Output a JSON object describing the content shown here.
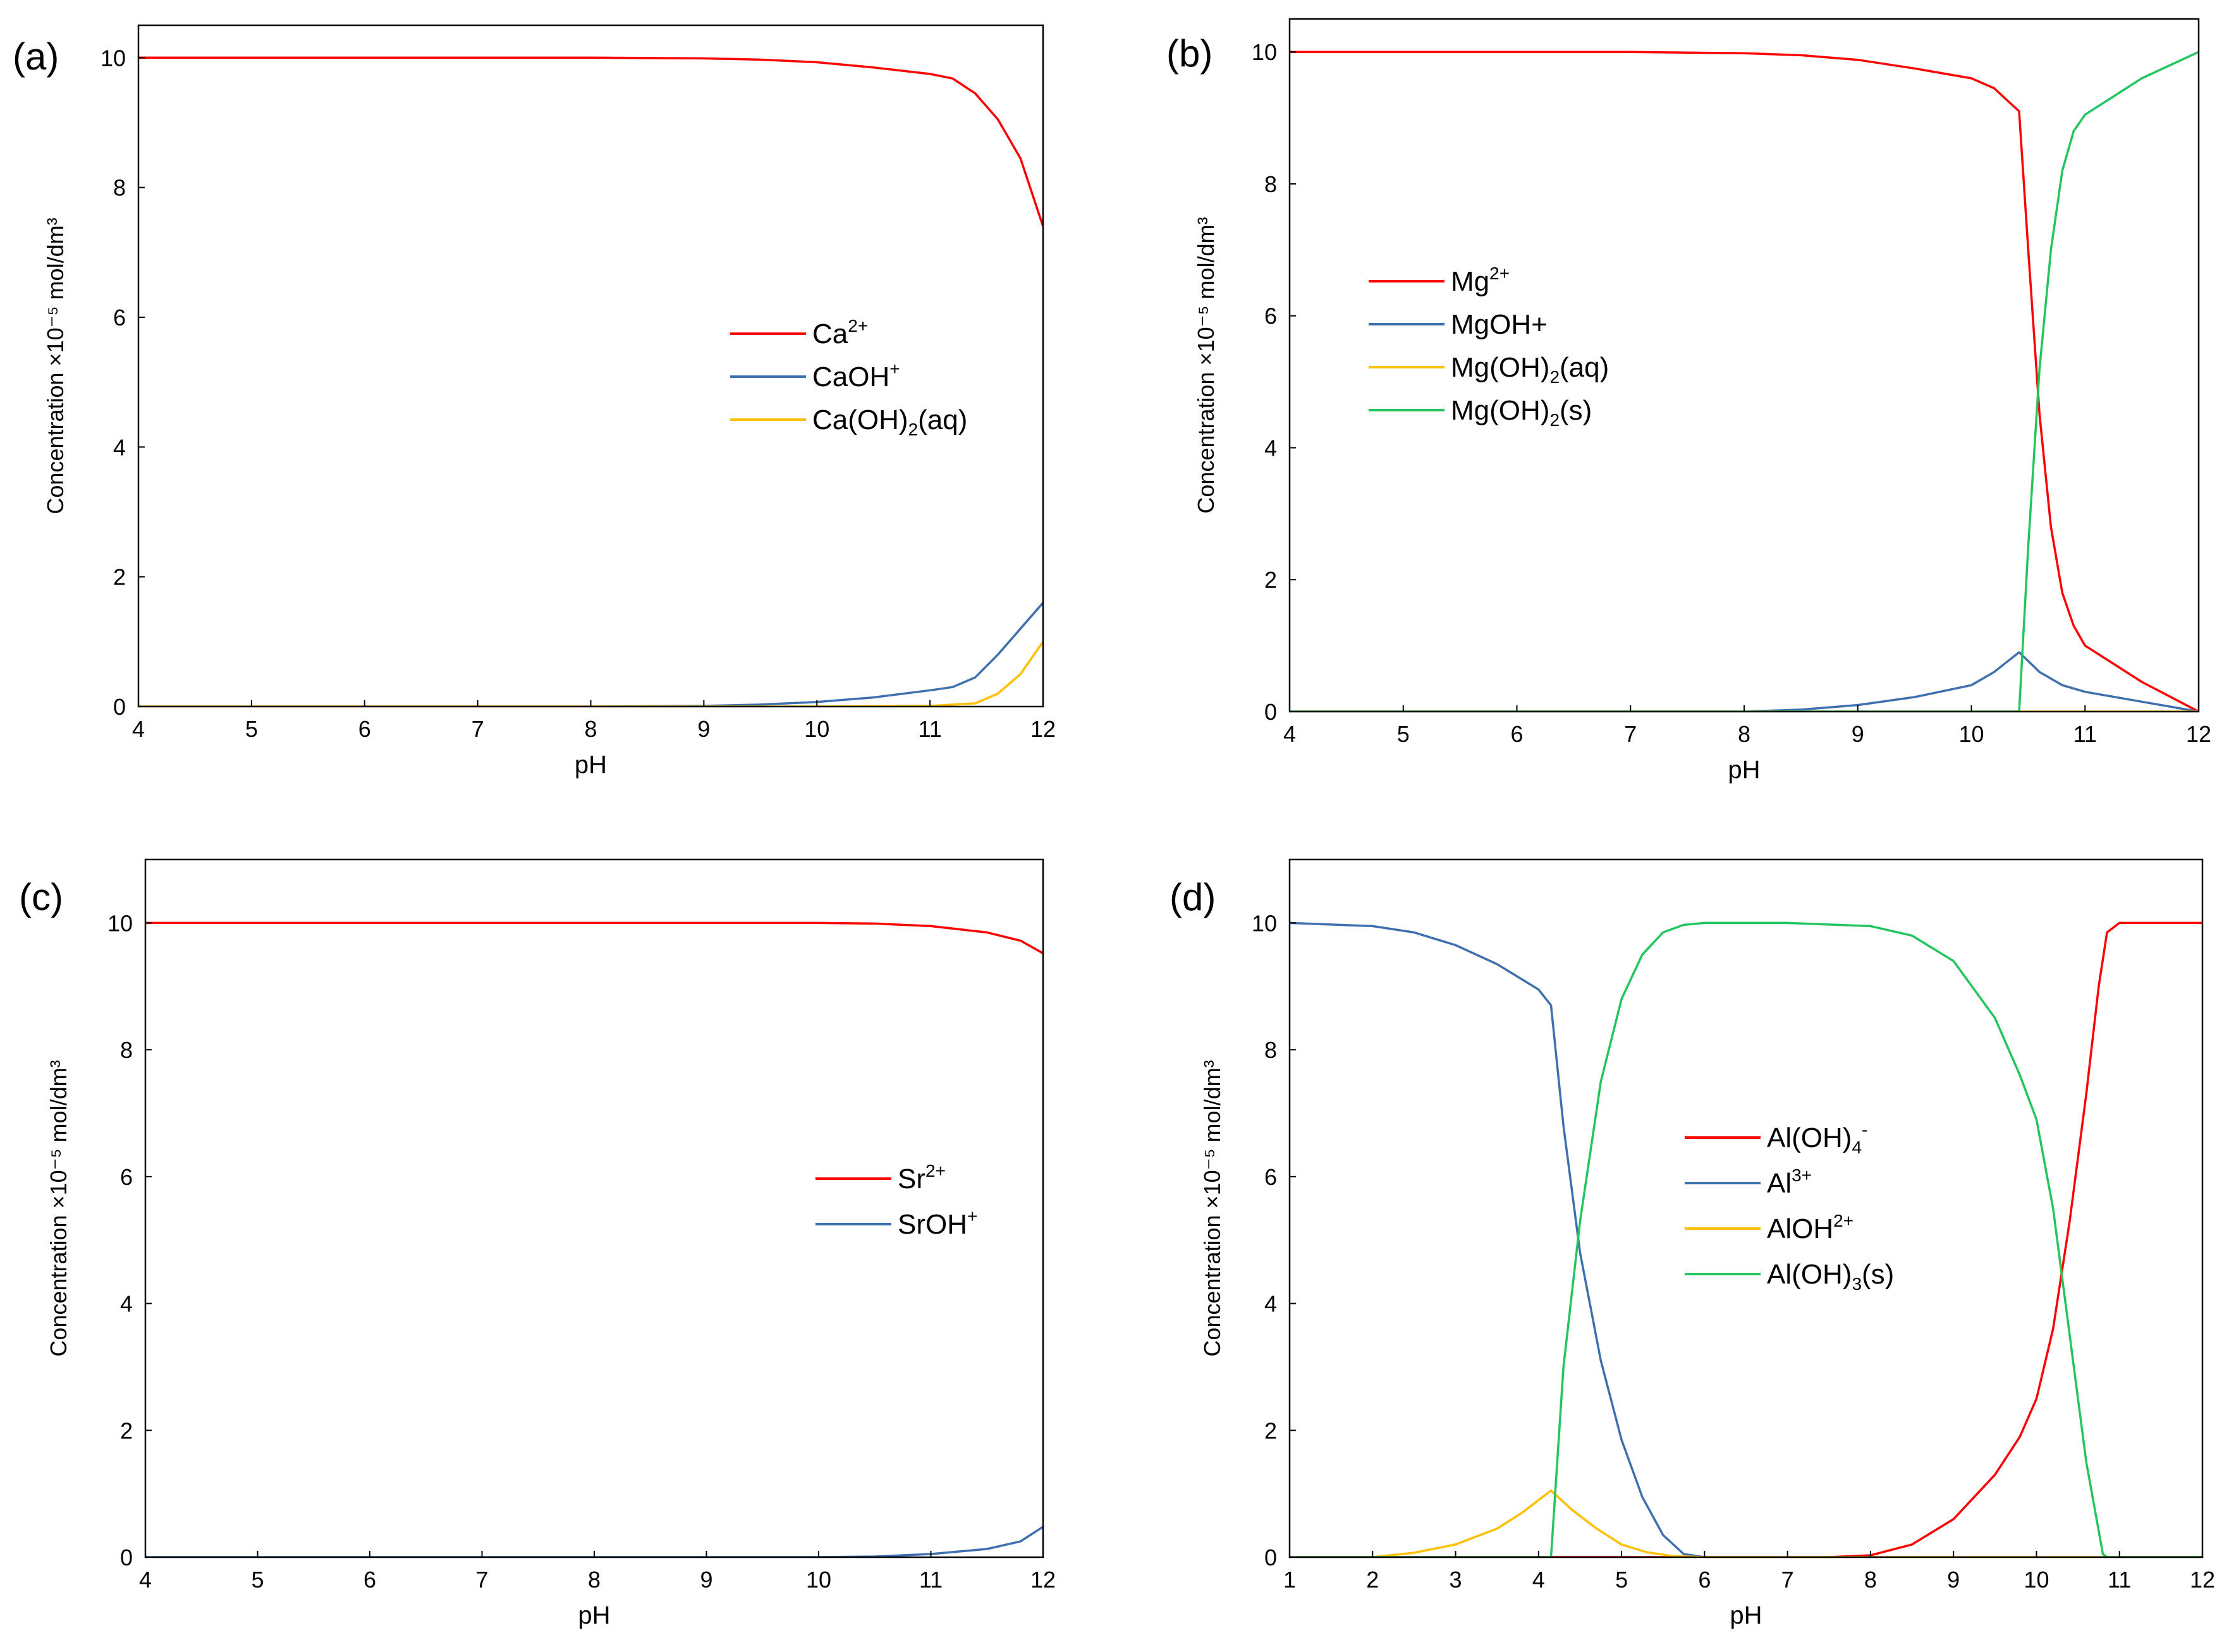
{
  "chart_data": [
    {
      "type": "line",
      "panel": "(a)",
      "xlabel": "pH",
      "ylabel": "Concentration ×10⁻⁵ mol/dm³",
      "xlim": [
        4,
        12
      ],
      "ylim": [
        0,
        10.5
      ],
      "xticks": [
        4,
        5,
        6,
        7,
        8,
        9,
        10,
        11,
        12
      ],
      "yticks": [
        0,
        2,
        4,
        6,
        8,
        10
      ],
      "legend_position": "center-right",
      "series": [
        {
          "name": "Ca2+",
          "label_base": "Ca",
          "label_sup": "2+",
          "label_sub": "",
          "label_tail": "",
          "color": "#ff0000",
          "points": [
            [
              4,
              10.0
            ],
            [
              8,
              10.0
            ],
            [
              9,
              9.99
            ],
            [
              9.5,
              9.97
            ],
            [
              10,
              9.93
            ],
            [
              10.5,
              9.85
            ],
            [
              11,
              9.75
            ],
            [
              11.2,
              9.68
            ],
            [
              11.4,
              9.45
            ],
            [
              11.6,
              9.05
            ],
            [
              11.8,
              8.45
            ],
            [
              12,
              7.4
            ]
          ]
        },
        {
          "name": "CaOH+",
          "label_base": "CaOH",
          "label_sup": "+",
          "label_sub": "",
          "label_tail": "",
          "color": "#3e6fb0",
          "points": [
            [
              4,
              0
            ],
            [
              8,
              0
            ],
            [
              9,
              0.01
            ],
            [
              9.5,
              0.03
            ],
            [
              10,
              0.07
            ],
            [
              10.5,
              0.14
            ],
            [
              11,
              0.25
            ],
            [
              11.2,
              0.3
            ],
            [
              11.4,
              0.45
            ],
            [
              11.6,
              0.8
            ],
            [
              11.8,
              1.2
            ],
            [
              12,
              1.6
            ]
          ]
        },
        {
          "name": "Ca(OH)2(aq)",
          "label_base": "Ca(OH)",
          "label_sup": "",
          "label_sub": "2",
          "label_tail": "(aq)",
          "color": "#ffc000",
          "points": [
            [
              4,
              0
            ],
            [
              10,
              0
            ],
            [
              11,
              0.01
            ],
            [
              11.4,
              0.05
            ],
            [
              11.6,
              0.2
            ],
            [
              11.8,
              0.5
            ],
            [
              12,
              1.0
            ]
          ]
        }
      ]
    },
    {
      "type": "line",
      "panel": "(b)",
      "xlabel": "pH",
      "ylabel": "Concentration ×10⁻⁵ mol/dm³",
      "xlim": [
        4,
        12
      ],
      "ylim": [
        0,
        10.5
      ],
      "xticks": [
        4,
        5,
        6,
        7,
        8,
        9,
        10,
        11,
        12
      ],
      "yticks": [
        0,
        2,
        4,
        6,
        8,
        10
      ],
      "legend_position": "center-left",
      "series": [
        {
          "name": "Mg2+",
          "label_base": "Mg",
          "label_sup": "2+",
          "label_sub": "",
          "label_tail": "",
          "color": "#ff0000",
          "points": [
            [
              4,
              10.0
            ],
            [
              7,
              10.0
            ],
            [
              8,
              9.98
            ],
            [
              8.5,
              9.95
            ],
            [
              9,
              9.88
            ],
            [
              9.5,
              9.75
            ],
            [
              10,
              9.6
            ],
            [
              10.2,
              9.45
            ],
            [
              10.42,
              9.1
            ],
            [
              10.5,
              7.0
            ],
            [
              10.6,
              4.5
            ],
            [
              10.7,
              2.8
            ],
            [
              10.8,
              1.8
            ],
            [
              10.9,
              1.3
            ],
            [
              11,
              1.0
            ],
            [
              11.5,
              0.45
            ],
            [
              12,
              0.0
            ]
          ]
        },
        {
          "name": "MgOH+",
          "label_base": "MgOH+",
          "label_sup": "",
          "label_sub": "",
          "label_tail": "",
          "color": "#3e6fb0",
          "points": [
            [
              4,
              0
            ],
            [
              8,
              0
            ],
            [
              8.5,
              0.03
            ],
            [
              9,
              0.1
            ],
            [
              9.5,
              0.22
            ],
            [
              10,
              0.4
            ],
            [
              10.2,
              0.6
            ],
            [
              10.42,
              0.9
            ],
            [
              10.6,
              0.6
            ],
            [
              10.8,
              0.4
            ],
            [
              11,
              0.3
            ],
            [
              11.5,
              0.15
            ],
            [
              12,
              0.0
            ]
          ]
        },
        {
          "name": "Mg(OH)2(aq)",
          "label_base": "Mg(OH)",
          "label_sup": "",
          "label_sub": "2",
          "label_tail": "(aq)",
          "color": "#ffc000",
          "points": [
            [
              4,
              0
            ],
            [
              12,
              0
            ]
          ]
        },
        {
          "name": "Mg(OH)2(s)",
          "label_base": "Mg(OH)",
          "label_sup": "",
          "label_sub": "2",
          "label_tail": "(s)",
          "color": "#22c55e",
          "points": [
            [
              4,
              0
            ],
            [
              10.42,
              0
            ],
            [
              10.5,
              2.5
            ],
            [
              10.6,
              5.2
            ],
            [
              10.7,
              7.0
            ],
            [
              10.8,
              8.2
            ],
            [
              10.9,
              8.8
            ],
            [
              11,
              9.05
            ],
            [
              11.5,
              9.6
            ],
            [
              12,
              10.0
            ]
          ]
        }
      ]
    },
    {
      "type": "line",
      "panel": "(c)",
      "xlabel": "pH",
      "ylabel": "Concentration ×10⁻⁵ mol/dm³",
      "xlim": [
        4,
        12
      ],
      "ylim": [
        0,
        11
      ],
      "xticks": [
        4,
        5,
        6,
        7,
        8,
        9,
        10,
        11,
        12
      ],
      "yticks": [
        0,
        2,
        4,
        6,
        8,
        10
      ],
      "legend_position": "center-right",
      "series": [
        {
          "name": "Sr2+",
          "label_base": "Sr",
          "label_sup": "2+",
          "label_sub": "",
          "label_tail": "",
          "color": "#ff0000",
          "points": [
            [
              4,
              10.0
            ],
            [
              10,
              10.0
            ],
            [
              10.5,
              9.99
            ],
            [
              11,
              9.95
            ],
            [
              11.5,
              9.85
            ],
            [
              11.8,
              9.72
            ],
            [
              12,
              9.52
            ]
          ]
        },
        {
          "name": "SrOH+",
          "label_base": "SrOH",
          "label_sup": "+",
          "label_sub": "",
          "label_tail": "",
          "color": "#3e6fb0",
          "points": [
            [
              4,
              0
            ],
            [
              10,
              0
            ],
            [
              10.5,
              0.01
            ],
            [
              11,
              0.05
            ],
            [
              11.5,
              0.13
            ],
            [
              11.8,
              0.25
            ],
            [
              12,
              0.48
            ]
          ]
        }
      ]
    },
    {
      "type": "line",
      "panel": "(d)",
      "xlabel": "pH",
      "ylabel": "Concentration ×10⁻⁵ mol/dm³",
      "xlim": [
        1,
        12
      ],
      "ylim": [
        0,
        11
      ],
      "xticks": [
        1,
        2,
        3,
        4,
        5,
        6,
        7,
        8,
        9,
        10,
        11,
        12
      ],
      "yticks": [
        0,
        2,
        4,
        6,
        8,
        10
      ],
      "legend_position": "center-right",
      "series": [
        {
          "name": "Al(OH)4-",
          "label_base": "Al(OH)",
          "label_sup": "-",
          "label_sub": "4",
          "label_tail": "",
          "color": "#ff0000",
          "points": [
            [
              1,
              0
            ],
            [
              7.5,
              0
            ],
            [
              8,
              0.03
            ],
            [
              8.5,
              0.2
            ],
            [
              9,
              0.6
            ],
            [
              9.5,
              1.3
            ],
            [
              9.8,
              1.9
            ],
            [
              10,
              2.5
            ],
            [
              10.2,
              3.6
            ],
            [
              10.4,
              5.3
            ],
            [
              10.6,
              7.3
            ],
            [
              10.75,
              9.0
            ],
            [
              10.85,
              9.85
            ],
            [
              11,
              10.0
            ],
            [
              12,
              10.0
            ]
          ]
        },
        {
          "name": "Al3+",
          "label_base": "Al",
          "label_sup": "3+",
          "label_sub": "",
          "label_tail": "",
          "color": "#3e6fb0",
          "points": [
            [
              1,
              10.0
            ],
            [
              2,
              9.95
            ],
            [
              2.5,
              9.85
            ],
            [
              3,
              9.65
            ],
            [
              3.5,
              9.35
            ],
            [
              4,
              8.95
            ],
            [
              4.15,
              8.7
            ],
            [
              4.3,
              6.8
            ],
            [
              4.5,
              4.8
            ],
            [
              4.75,
              3.1
            ],
            [
              5,
              1.85
            ],
            [
              5.25,
              0.95
            ],
            [
              5.5,
              0.35
            ],
            [
              5.75,
              0.05
            ],
            [
              6,
              0.0
            ],
            [
              12,
              0.0
            ]
          ]
        },
        {
          "name": "AlOH2+",
          "label_base": "AlOH",
          "label_sup": "2+",
          "label_sub": "",
          "label_tail": "",
          "color": "#ffc000",
          "points": [
            [
              1,
              0
            ],
            [
              2,
              0.0
            ],
            [
              2.5,
              0.07
            ],
            [
              3,
              0.2
            ],
            [
              3.5,
              0.45
            ],
            [
              3.8,
              0.7
            ],
            [
              4.15,
              1.05
            ],
            [
              4.4,
              0.75
            ],
            [
              4.7,
              0.45
            ],
            [
              5,
              0.2
            ],
            [
              5.3,
              0.08
            ],
            [
              5.6,
              0.02
            ],
            [
              6,
              0
            ],
            [
              12,
              0
            ]
          ]
        },
        {
          "name": "Al(OH)3(s)",
          "label_base": "Al(OH)",
          "label_sup": "",
          "label_sub": "3",
          "label_tail": "(s)",
          "color": "#22c55e",
          "points": [
            [
              1,
              0
            ],
            [
              4.15,
              0
            ],
            [
              4.3,
              3.0
            ],
            [
              4.5,
              5.3
            ],
            [
              4.75,
              7.5
            ],
            [
              5,
              8.8
            ],
            [
              5.25,
              9.5
            ],
            [
              5.5,
              9.85
            ],
            [
              5.75,
              9.97
            ],
            [
              6,
              10.0
            ],
            [
              7,
              10.0
            ],
            [
              8,
              9.95
            ],
            [
              8.5,
              9.8
            ],
            [
              9,
              9.4
            ],
            [
              9.5,
              8.5
            ],
            [
              9.8,
              7.6
            ],
            [
              10,
              6.9
            ],
            [
              10.2,
              5.5
            ],
            [
              10.4,
              3.5
            ],
            [
              10.6,
              1.5
            ],
            [
              10.8,
              0.05
            ],
            [
              10.85,
              0
            ],
            [
              12,
              0
            ]
          ]
        }
      ]
    }
  ]
}
